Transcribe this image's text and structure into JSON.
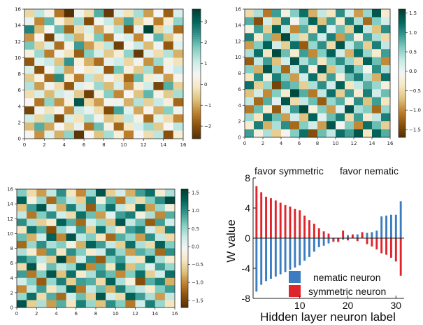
{
  "chart_data": [
    {
      "type": "heatmap",
      "id": "hm-top-left",
      "xlim": [
        0,
        16
      ],
      "ylim": [
        0,
        16
      ],
      "xticks": [
        0,
        2,
        4,
        6,
        8,
        10,
        12,
        14,
        16
      ],
      "yticks": [
        0,
        2,
        4,
        6,
        8,
        10,
        12,
        14,
        16
      ],
      "colorbar": {
        "min": -2.6,
        "max": 3.6,
        "ticks": [
          3,
          2,
          1,
          0,
          -1,
          -2
        ],
        "tick_labels": [
          "3",
          "2",
          "1",
          "0",
          "−1",
          "−2"
        ]
      },
      "colormap": [
        "#543005",
        "#8c510a",
        "#bf812d",
        "#dfc27d",
        "#f6e8c3",
        "#f5f5f5",
        "#c7eae5",
        "#80cdc1",
        "#35978f",
        "#01665e",
        "#003c30"
      ],
      "rows_top_to_bottom": [
        [
          -0.4,
          1.2,
          0.3,
          -1.5,
          -2.6,
          0.6,
          -0.3,
          2.1,
          -2.4,
          0.8,
          -0.2,
          1.4,
          -1.1,
          0.5,
          -1.8,
          0.9
        ],
        [
          0.7,
          -1.3,
          2.0,
          0.2,
          -0.6,
          1.5,
          -2.1,
          0.4,
          1.1,
          -0.9,
          2.2,
          -0.5,
          0.3,
          -1.4,
          0.1,
          1.6
        ],
        [
          2.6,
          -0.8,
          0.5,
          1.9,
          -1.7,
          -0.3,
          0.9,
          -1.0,
          0.2,
          1.3,
          -2.0,
          0.7,
          3.5,
          -0.4,
          1.0,
          -1.6
        ],
        [
          -1.2,
          0.4,
          -2.2,
          0.8,
          1.4,
          -0.9,
          0.1,
          1.8,
          -1.5,
          0.6,
          0.9,
          -1.3,
          0.5,
          2.0,
          -0.7,
          0.3
        ],
        [
          1.8,
          -0.5,
          0.9,
          -1.6,
          0.3,
          2.3,
          -1.1,
          -0.2,
          1.2,
          -2.3,
          0.4,
          1.1,
          -0.8,
          0.6,
          -1.9,
          0.8
        ],
        [
          0.2,
          1.5,
          -1.4,
          0.6,
          -0.2,
          -1.8,
          1.7,
          0.9,
          -0.6,
          0.1,
          1.6,
          -2.4,
          0.8,
          -0.3,
          1.3,
          -0.9
        ],
        [
          -1.9,
          0.8,
          1.1,
          -0.7,
          2.4,
          0.2,
          -0.9,
          -1.6,
          0.7,
          1.0,
          -0.4,
          0.6,
          -1.2,
          1.5,
          0.3,
          -0.2
        ],
        [
          0.9,
          -2.0,
          0.4,
          1.3,
          -1.0,
          0.5,
          -0.1,
          0.8,
          -1.9,
          1.8,
          0.2,
          -0.6,
          1.4,
          -1.5,
          0.6,
          1.1
        ],
        [
          -0.6,
          0.3,
          -1.7,
          2.5,
          0.1,
          -1.4,
          1.2,
          -0.5,
          0.6,
          -0.2,
          -1.7,
          1.9,
          0.0,
          0.7,
          -1.1,
          0.4
        ],
        [
          1.3,
          -1.1,
          0.6,
          -0.3,
          -1.9,
          0.8,
          0.3,
          1.5,
          -0.8,
          0.9,
          -1.2,
          0.2,
          1.0,
          -2.2,
          2.1,
          -0.5
        ],
        [
          -0.3,
          0.9,
          -0.8,
          1.0,
          0.7,
          -0.6,
          -2.3,
          0.2,
          1.7,
          -1.3,
          0.5,
          -0.7,
          2.0,
          0.3,
          -0.6,
          1.4
        ],
        [
          0.5,
          -1.5,
          1.6,
          -1.2,
          0.2,
          3.2,
          -0.4,
          -1.1,
          0.4,
          0.6,
          -0.9,
          1.3,
          -0.5,
          1.1,
          0.2,
          -1.7
        ],
        [
          -2.2,
          0.6,
          -0.2,
          0.4,
          -1.3,
          1.1,
          0.7,
          -0.3,
          -2.1,
          2.2,
          0.8,
          -1.0,
          0.4,
          -0.9,
          1.7,
          0.6
        ],
        [
          1.0,
          -0.4,
          1.3,
          -2.1,
          0.9,
          -0.2,
          1.4,
          0.6,
          -0.7,
          -0.4,
          1.2,
          0.3,
          -1.6,
          0.8,
          -0.3,
          -1.3
        ],
        [
          -0.8,
          2.1,
          -1.0,
          0.5,
          -0.4,
          0.7,
          -1.5,
          1.9,
          0.3,
          -1.7,
          -0.1,
          0.9,
          1.5,
          -0.6,
          0.5,
          1.2
        ],
        [
          0.4,
          -1.2,
          0.8,
          -0.9,
          1.6,
          -2.5,
          0.5,
          -0.7,
          1.4,
          0.2,
          -1.4,
          0.5,
          -0.3,
          1.2,
          -2.0,
          0.1
        ]
      ]
    },
    {
      "type": "heatmap",
      "id": "hm-top-right",
      "xlim": [
        0,
        16
      ],
      "ylim": [
        0,
        16
      ],
      "xticks": [
        0,
        2,
        4,
        6,
        8,
        10,
        12,
        14,
        16
      ],
      "yticks": [
        0,
        2,
        4,
        6,
        8,
        10,
        12,
        14,
        16
      ],
      "colorbar": {
        "min": -1.7,
        "max": 1.6,
        "ticks": [
          1.5,
          1.0,
          0.5,
          0.0,
          -0.5,
          -1.0,
          -1.5
        ],
        "tick_labels": [
          "1.5",
          "1.0",
          "0.5",
          "0.0",
          "−0.5",
          "−1.0",
          "−1.5"
        ]
      },
      "colormap": [
        "#543005",
        "#8c510a",
        "#bf812d",
        "#dfc27d",
        "#f6e8c3",
        "#f5f5f5",
        "#c7eae5",
        "#80cdc1",
        "#35978f",
        "#01665e",
        "#003c30"
      ],
      "rows_top_to_bottom": [
        [
          -0.5,
          0.4,
          -1.1,
          0.9,
          -0.2,
          0.6,
          1.2,
          -0.8,
          0.3,
          -0.4,
          1.0,
          0.2,
          -0.9,
          0.5,
          1.4,
          -0.3
        ],
        [
          0.8,
          -1.4,
          0.2,
          -0.6,
          1.1,
          -0.1,
          0.5,
          1.3,
          -0.7,
          0.9,
          -0.3,
          1.1,
          0.4,
          -1.2,
          0.6,
          0.2
        ],
        [
          -0.2,
          0.9,
          -0.6,
          1.3,
          0.3,
          -1.0,
          0.8,
          -0.4,
          1.2,
          0.1,
          0.7,
          -0.6,
          1.3,
          0.3,
          -0.7,
          1.0
        ],
        [
          1.1,
          -0.3,
          0.7,
          -0.9,
          1.5,
          0.4,
          -0.5,
          0.9,
          0.2,
          1.1,
          -0.9,
          0.8,
          -0.2,
          0.9,
          0.4,
          -0.5
        ],
        [
          -0.9,
          0.6,
          1.3,
          0.2,
          -0.6,
          1.2,
          -1.3,
          0.5,
          1.0,
          -0.5,
          1.4,
          0.3,
          0.8,
          -0.6,
          1.1,
          0.3
        ],
        [
          0.4,
          1.2,
          -0.4,
          1.5,
          0.7,
          -0.3,
          0.9,
          -1.0,
          0.6,
          1.3,
          0.2,
          -0.8,
          1.2,
          0.5,
          -0.3,
          0.9
        ],
        [
          -1.3,
          0.3,
          0.9,
          -0.7,
          0.2,
          1.4,
          0.4,
          0.8,
          -0.4,
          0.6,
          1.0,
          0.5,
          -0.5,
          1.3,
          0.7,
          -1.0
        ],
        [
          0.6,
          -0.8,
          1.4,
          0.5,
          -1.2,
          0.3,
          1.1,
          -0.2,
          1.4,
          -0.7,
          0.4,
          1.2,
          0.6,
          -0.1,
          1.0,
          0.4
        ],
        [
          -0.4,
          1.0,
          -0.2,
          1.1,
          0.6,
          -0.9,
          0.2,
          1.2,
          -0.5,
          0.9,
          -0.2,
          0.7,
          1.1,
          0.4,
          -0.8,
          1.2
        ],
        [
          1.2,
          -0.6,
          0.5,
          -1.5,
          0.9,
          0.7,
          -0.6,
          0.4,
          1.0,
          0.2,
          1.3,
          -0.4,
          0.3,
          0.8,
          0.5,
          -0.2
        ],
        [
          -0.7,
          0.2,
          -1.0,
          0.6,
          -0.3,
          1.5,
          0.8,
          -1.1,
          0.3,
          1.2,
          -0.6,
          0.9,
          -0.3,
          1.1,
          0.2,
          0.7
        ],
        [
          0.3,
          -1.2,
          0.8,
          0.1,
          1.4,
          -0.5,
          0.3,
          0.7,
          -1.3,
          0.5,
          0.8,
          -0.2,
          1.0,
          -0.7,
          0.9,
          -0.4
        ],
        [
          -1.1,
          0.7,
          -0.3,
          -1.3,
          0.2,
          0.9,
          1.5,
          -0.2,
          0.6,
          -0.9,
          0.1,
          1.4,
          0.4,
          0.6,
          -1.2,
          0.5
        ],
        [
          0.5,
          -0.4,
          1.2,
          0.7,
          -0.9,
          0.2,
          -0.7,
          1.3,
          0.1,
          0.7,
          1.1,
          -0.5,
          0.9,
          -0.3,
          0.3,
          1.1
        ],
        [
          -0.3,
          1.1,
          -0.8,
          0.4,
          1.0,
          -1.2,
          0.6,
          0.2,
          -0.9,
          1.4,
          -0.1,
          0.6,
          -1.0,
          1.2,
          0.7,
          -0.6
        ],
        [
          0.9,
          -0.2,
          0.4,
          -0.6,
          -0.1,
          0.6,
          1.2,
          -1.4,
          0.7,
          0.3,
          1.2,
          0.9,
          1.4,
          -0.4,
          1.3,
          0.8
        ]
      ]
    },
    {
      "type": "heatmap",
      "id": "hm-bottom-left",
      "xlim": [
        0,
        16
      ],
      "ylim": [
        0,
        16
      ],
      "xticks": [
        0,
        2,
        4,
        6,
        8,
        10,
        12,
        14,
        16
      ],
      "yticks": [
        0,
        2,
        4,
        6,
        8,
        10,
        12,
        14,
        16
      ],
      "colorbar": {
        "min": -1.7,
        "max": 1.6,
        "ticks": [
          1.5,
          1.0,
          0.5,
          0.0,
          -0.5,
          -1.0,
          -1.5
        ],
        "tick_labels": [
          "1.5",
          "1.0",
          "0.5",
          "0.0",
          "−0.5",
          "−1.0",
          "−1.5"
        ]
      },
      "colormap": [
        "#543005",
        "#8c510a",
        "#bf812d",
        "#dfc27d",
        "#f6e8c3",
        "#f5f5f5",
        "#c7eae5",
        "#80cdc1",
        "#35978f",
        "#01665e",
        "#003c30"
      ],
      "rows_top_to_bottom": [
        [
          0.6,
          -0.5,
          -0.9,
          0.3,
          1.0,
          -0.4,
          -1.0,
          0.5,
          1.4,
          -0.6,
          0.2,
          -0.8,
          0.9,
          1.2,
          -0.3,
          0.4
        ],
        [
          1.3,
          -0.2,
          0.5,
          -1.2,
          0.7,
          0.3,
          -0.6,
          1.1,
          -0.2,
          0.8,
          -1.1,
          0.4,
          -0.5,
          0.6,
          1.0,
          1.5
        ],
        [
          -0.7,
          0.9,
          1.4,
          0.2,
          -0.8,
          1.1,
          0.4,
          -1.3,
          0.6,
          1.2,
          0.3,
          -0.4,
          1.3,
          -0.9,
          0.5,
          -0.2
        ],
        [
          0.3,
          -1.1,
          0.6,
          1.0,
          0.2,
          -0.5,
          1.2,
          0.7,
          -0.9,
          0.1,
          0.9,
          1.1,
          -0.2,
          0.4,
          -1.0,
          0.8
        ],
        [
          1.0,
          0.4,
          -0.6,
          -0.3,
          1.3,
          0.8,
          -1.2,
          0.2,
          0.5,
          -0.7,
          1.4,
          0.3,
          0.7,
          -1.3,
          0.9,
          0.2
        ],
        [
          -0.4,
          1.2,
          0.8,
          -1.4,
          0.5,
          0.1,
          0.9,
          -0.6,
          1.2,
          0.4,
          -0.3,
          0.9,
          1.1,
          0.2,
          -0.6,
          1.1
        ],
        [
          0.7,
          -0.8,
          0.2,
          1.3,
          -1.0,
          1.4,
          0.3,
          0.6,
          -0.4,
          -1.2,
          0.8,
          0.5,
          -0.9,
          1.0,
          0.3,
          -0.5
        ],
        [
          -1.2,
          0.5,
          1.0,
          0.4,
          0.6,
          -0.2,
          -0.8,
          1.3,
          0.9,
          0.3,
          -0.6,
          1.2,
          0.4,
          -0.5,
          1.3,
          0.6
        ],
        [
          0.4,
          -0.3,
          -1.0,
          0.9,
          -0.4,
          1.0,
          0.6,
          -0.3,
          0.2,
          1.1,
          0.5,
          -0.9,
          0.8,
          0.6,
          -1.2,
          1.0
        ],
        [
          1.1,
          0.8,
          0.3,
          -0.6,
          1.5,
          -0.9,
          0.2,
          1.0,
          -1.3,
          0.6,
          0.9,
          0.2,
          -0.4,
          1.3,
          0.4,
          -0.3
        ],
        [
          -0.5,
          1.4,
          -0.2,
          0.7,
          0.3,
          0.5,
          1.3,
          -1.0,
          0.8,
          -0.4,
          1.2,
          -0.7,
          0.6,
          0.1,
          0.9,
          0.5
        ],
        [
          0.9,
          -1.1,
          0.6,
          1.4,
          -0.7,
          1.2,
          -0.3,
          0.4,
          1.0,
          0.7,
          -1.0,
          0.6,
          1.2,
          -0.6,
          0.2,
          1.2
        ],
        [
          0.2,
          0.6,
          -1.3,
          0.5,
          1.1,
          -0.6,
          0.9,
          0.8,
          -0.5,
          1.3,
          0.4,
          -0.2,
          -1.4,
          0.8,
          1.1,
          -0.8
        ],
        [
          -1.0,
          0.3,
          0.9,
          -0.4,
          0.4,
          1.3,
          -1.1,
          0.3,
          0.7,
          -0.8,
          1.1,
          0.5,
          0.3,
          -0.3,
          0.6,
          0.9
        ],
        [
          0.5,
          1.2,
          -0.5,
          0.8,
          -1.2,
          0.2,
          0.7,
          -0.6,
          1.4,
          0.2,
          -0.5,
          1.3,
          0.9,
          0.4,
          -0.9,
          0.3
        ],
        [
          1.4,
          -0.6,
          0.4,
          -0.9,
          0.8,
          -0.4,
          1.1,
          0.5,
          -0.7,
          1.0,
          0.6,
          -1.1,
          0.2,
          1.1,
          0.5,
          -0.4
        ]
      ]
    },
    {
      "type": "bar",
      "id": "bar-w-values",
      "xlabel": "Hidden layer neuron label",
      "ylabel": "W value",
      "xlim": [
        0.3,
        31.7
      ],
      "ylim": [
        -8,
        8
      ],
      "xticks": [
        10,
        20,
        30
      ],
      "yticks": [
        -8,
        -4,
        0,
        4,
        8
      ],
      "annotations": [
        "favor symmetric",
        "favor nematic"
      ],
      "legend": {
        "position": "lower-right"
      },
      "series": [
        {
          "name": "nematic neuron",
          "color": "#3b7dc0",
          "x": [
            1,
            2,
            3,
            4,
            5,
            6,
            7,
            8,
            9,
            10,
            11,
            12,
            13,
            14,
            15,
            16,
            17,
            18,
            19,
            20,
            21,
            22,
            23,
            24,
            25,
            26,
            27,
            28,
            29,
            30,
            31
          ],
          "values": [
            -7.1,
            -6.2,
            -5.7,
            -5.4,
            -5.1,
            -4.8,
            -4.5,
            -4.2,
            -3.9,
            -3.6,
            -3.0,
            -2.5,
            -1.8,
            -1.2,
            -1.0,
            -0.7,
            -0.5,
            -0.4,
            -0.2,
            0.4,
            0.3,
            0.5,
            0.4,
            0.7,
            0.8,
            1.0,
            2.9,
            3.0,
            3.1,
            3.1,
            4.9
          ]
        },
        {
          "name": "symmetric neuron",
          "color": "#e0242b",
          "x": [
            1,
            2,
            3,
            4,
            5,
            6,
            7,
            8,
            9,
            10,
            11,
            12,
            13,
            14,
            15,
            16,
            17,
            18,
            19,
            20,
            21,
            22,
            23,
            24,
            25,
            26,
            27,
            28,
            29,
            30,
            31
          ],
          "values": [
            6.9,
            6.1,
            5.5,
            5.3,
            5.0,
            4.7,
            4.4,
            4.2,
            3.9,
            3.7,
            3.0,
            2.4,
            1.9,
            1.3,
            0.9,
            0.6,
            -0.4,
            -0.5,
            1.0,
            -0.3,
            0.5,
            -0.4,
            0.8,
            -0.8,
            -1.1,
            -1.5,
            -2.0,
            -2.2,
            -2.6,
            -3.1,
            -5.0
          ]
        }
      ]
    }
  ]
}
